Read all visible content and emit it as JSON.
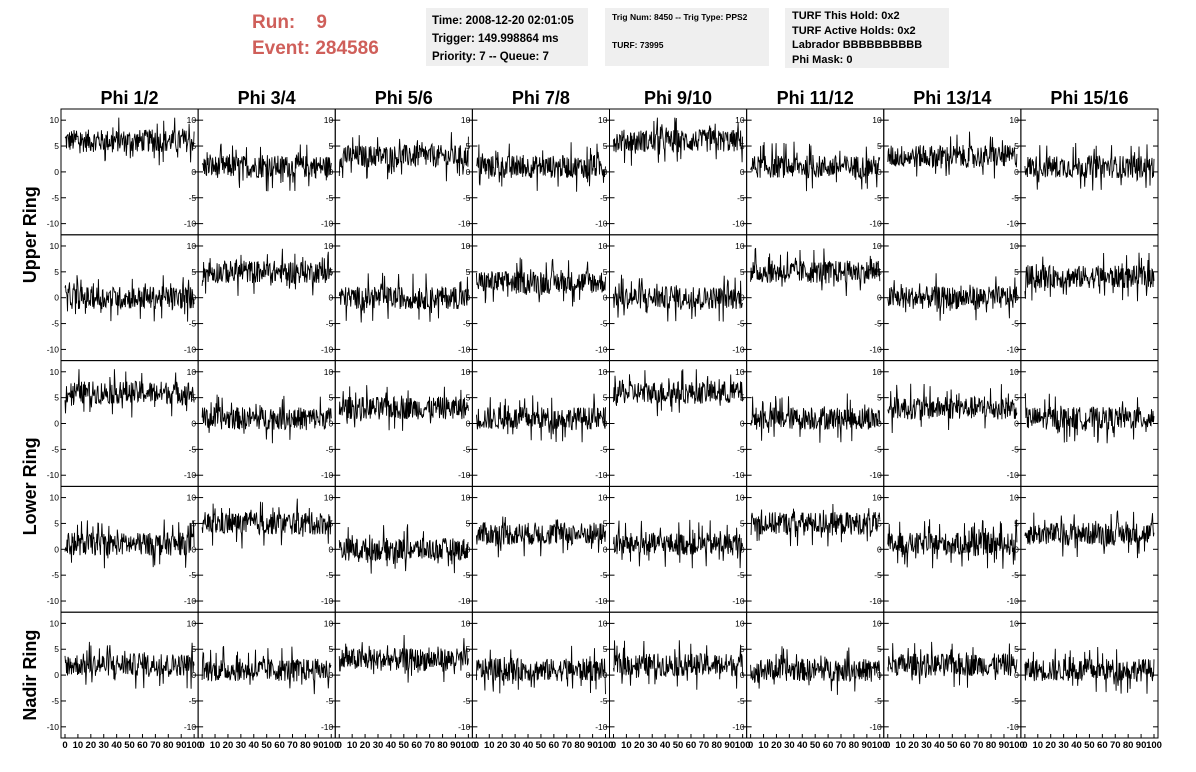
{
  "header": {
    "run_label": "Run:",
    "run_value": "9",
    "event_label": "Event:",
    "event_value": "284586"
  },
  "info1": {
    "time": "Time: 2008-12-20 02:01:05",
    "trigger": "Trigger: 149.998864 ms",
    "priority": "Priority: 7 -- Queue: 7"
  },
  "info2": {
    "trig": "Trig Num: 8450 -- Trig Type: PPS2",
    "turf": "TURF: 73995"
  },
  "info3": {
    "this_hold": "TURF This Hold: 0x2",
    "active_holds": "TURF Active Holds: 0x2",
    "labrador": "Labrador BBBBBBBBBB",
    "phi_mask": "Phi Mask: 0"
  },
  "colors": {
    "header_red": "#cf5f5a",
    "panel_bg": "#efefef",
    "trace": "#000000"
  },
  "chart_data": {
    "type": "line",
    "columns": [
      "Phi 1/2",
      "Phi 3/4",
      "Phi 5/6",
      "Phi 7/8",
      "Phi 9/10",
      "Phi 11/12",
      "Phi 13/14",
      "Phi 15/16"
    ],
    "row_groups": [
      {
        "label": "Upper Ring",
        "rows": [
          0,
          1
        ]
      },
      {
        "label": "Lower Ring",
        "rows": [
          2,
          3
        ]
      },
      {
        "label": "Nadir Ring",
        "rows": [
          4
        ]
      }
    ],
    "y_ticks": [
      "10",
      "5",
      "0",
      "-5",
      "-10"
    ],
    "x_ticks": [
      "0",
      "10",
      "20",
      "30",
      "40",
      "50",
      "60",
      "70",
      "80",
      "90",
      "100"
    ],
    "xlim": [
      0,
      100
    ],
    "ylim": [
      -11,
      11
    ],
    "grid": false,
    "baselines": [
      [
        6,
        1,
        3,
        1,
        6,
        1,
        3,
        1
      ],
      [
        0,
        5,
        0,
        3,
        0,
        5,
        0,
        4
      ],
      [
        6,
        1,
        3,
        1,
        6,
        1,
        3,
        1
      ],
      [
        1,
        5,
        0,
        3,
        1,
        5,
        1,
        3
      ],
      [
        2,
        1,
        3,
        1,
        2,
        1,
        2,
        1
      ]
    ],
    "spread": 2.2,
    "samples_per_trace": 260
  }
}
